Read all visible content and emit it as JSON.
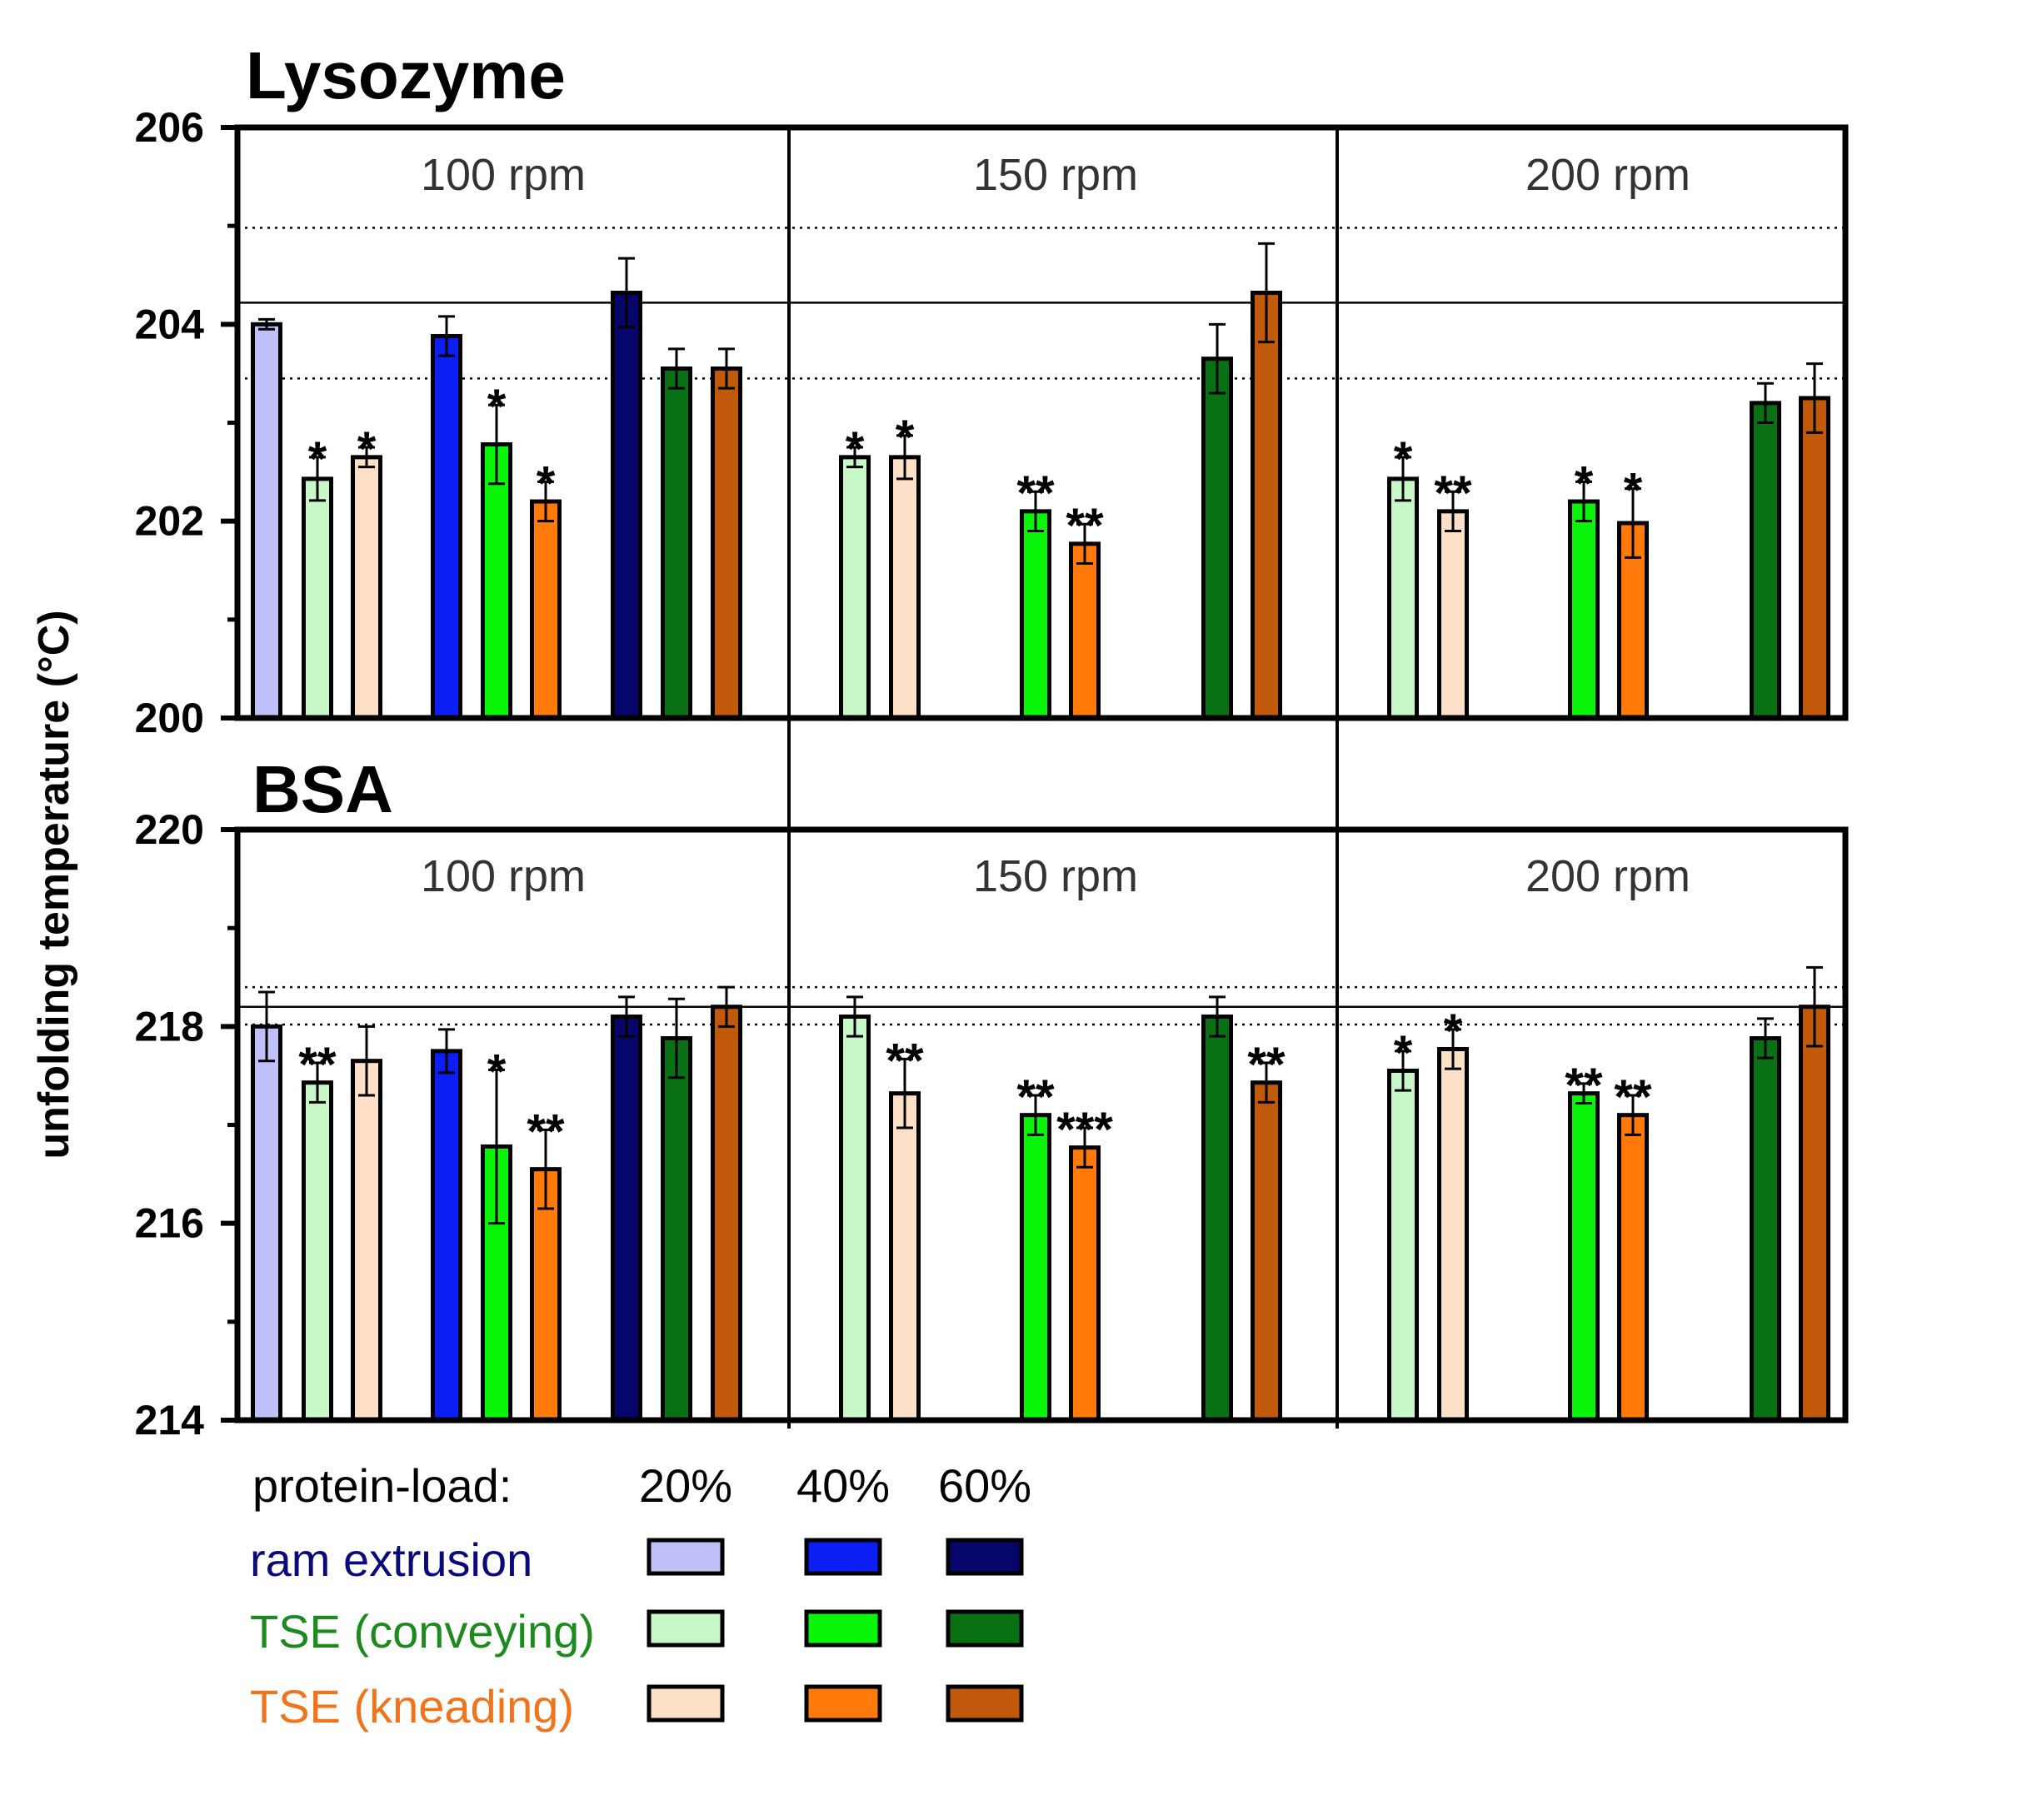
{
  "ylabel": "unfolding temperature (°C)",
  "legend": {
    "title": "protein-load:",
    "loads": [
      "20%",
      "40%",
      "60%"
    ],
    "rows": [
      {
        "label": "ram extrusion",
        "color": "#0a0a7a",
        "swatches": [
          "#c0c0f8",
          "#0a1ef5",
          "#06066a"
        ]
      },
      {
        "label": "TSE (conveying)",
        "color": "#1c8a1c",
        "swatches": [
          "#c8f8c8",
          "#0af50a",
          "#0a7014"
        ]
      },
      {
        "label": "TSE (kneading)",
        "color": "#f0741e",
        "swatches": [
          "#fde0c8",
          "#ff7a0a",
          "#c05a0a"
        ]
      }
    ]
  },
  "chart_data": [
    {
      "type": "bar",
      "title": "Lysozyme",
      "ylabel": "unfolding temperature (°C)",
      "ylim": [
        200,
        206
      ],
      "yticks": [
        "200",
        "202",
        "204",
        "206"
      ],
      "reference_line": 204.22,
      "reference_band": [
        203.45,
        204.98
      ],
      "panels": [
        "100 rpm",
        "150 rpm",
        "200 rpm"
      ],
      "bars": [
        {
          "panel": "100 rpm",
          "process": "ram extrusion",
          "load": "20%",
          "value": 204.0,
          "err": 0.05,
          "sig": ""
        },
        {
          "panel": "100 rpm",
          "process": "TSE (conveying)",
          "load": "20%",
          "value": 202.43,
          "err": 0.22,
          "sig": "*"
        },
        {
          "panel": "100 rpm",
          "process": "TSE (kneading)",
          "load": "20%",
          "value": 202.65,
          "err": 0.1,
          "sig": "*"
        },
        {
          "panel": "100 rpm",
          "process": "ram extrusion",
          "load": "40%",
          "value": 203.88,
          "err": 0.2,
          "sig": ""
        },
        {
          "panel": "100 rpm",
          "process": "TSE (conveying)",
          "load": "40%",
          "value": 202.78,
          "err": 0.4,
          "sig": "*"
        },
        {
          "panel": "100 rpm",
          "process": "TSE (kneading)",
          "load": "40%",
          "value": 202.2,
          "err": 0.2,
          "sig": "*"
        },
        {
          "panel": "100 rpm",
          "process": "ram extrusion",
          "load": "60%",
          "value": 204.32,
          "err": 0.35,
          "sig": ""
        },
        {
          "panel": "100 rpm",
          "process": "TSE (conveying)",
          "load": "60%",
          "value": 203.55,
          "err": 0.2,
          "sig": ""
        },
        {
          "panel": "100 rpm",
          "process": "TSE (kneading)",
          "load": "60%",
          "value": 203.55,
          "err": 0.2,
          "sig": ""
        },
        {
          "panel": "150 rpm",
          "process": "TSE (conveying)",
          "load": "20%",
          "value": 202.65,
          "err": 0.1,
          "sig": "*"
        },
        {
          "panel": "150 rpm",
          "process": "TSE (kneading)",
          "load": "20%",
          "value": 202.65,
          "err": 0.22,
          "sig": "*"
        },
        {
          "panel": "150 rpm",
          "process": "TSE (conveying)",
          "load": "40%",
          "value": 202.1,
          "err": 0.2,
          "sig": "**"
        },
        {
          "panel": "150 rpm",
          "process": "TSE (kneading)",
          "load": "40%",
          "value": 201.77,
          "err": 0.2,
          "sig": "**"
        },
        {
          "panel": "150 rpm",
          "process": "TSE (conveying)",
          "load": "60%",
          "value": 203.65,
          "err": 0.35,
          "sig": ""
        },
        {
          "panel": "150 rpm",
          "process": "TSE (kneading)",
          "load": "60%",
          "value": 204.32,
          "err": 0.5,
          "sig": ""
        },
        {
          "panel": "200 rpm",
          "process": "TSE (conveying)",
          "load": "20%",
          "value": 202.43,
          "err": 0.22,
          "sig": "*"
        },
        {
          "panel": "200 rpm",
          "process": "TSE (kneading)",
          "load": "20%",
          "value": 202.1,
          "err": 0.2,
          "sig": "**"
        },
        {
          "panel": "200 rpm",
          "process": "TSE (conveying)",
          "load": "40%",
          "value": 202.2,
          "err": 0.2,
          "sig": "*"
        },
        {
          "panel": "200 rpm",
          "process": "TSE (kneading)",
          "load": "40%",
          "value": 201.98,
          "err": 0.35,
          "sig": "*"
        },
        {
          "panel": "200 rpm",
          "process": "TSE (conveying)",
          "load": "60%",
          "value": 203.2,
          "err": 0.2,
          "sig": ""
        },
        {
          "panel": "200 rpm",
          "process": "TSE (kneading)",
          "load": "60%",
          "value": 203.25,
          "err": 0.35,
          "sig": ""
        }
      ]
    },
    {
      "type": "bar",
      "title": "BSA",
      "ylabel": "unfolding temperature (°C)",
      "ylim": [
        214,
        220
      ],
      "yticks": [
        "214",
        "216",
        "218",
        "220"
      ],
      "reference_line": 218.2,
      "reference_band": [
        218.02,
        218.4
      ],
      "panels": [
        "100 rpm",
        "150 rpm",
        "200 rpm"
      ],
      "bars": [
        {
          "panel": "100 rpm",
          "process": "ram extrusion",
          "load": "20%",
          "value": 218.0,
          "err": 0.35,
          "sig": ""
        },
        {
          "panel": "100 rpm",
          "process": "TSE (conveying)",
          "load": "20%",
          "value": 217.43,
          "err": 0.2,
          "sig": "**"
        },
        {
          "panel": "100 rpm",
          "process": "TSE (kneading)",
          "load": "20%",
          "value": 217.65,
          "err": 0.35,
          "sig": ""
        },
        {
          "panel": "100 rpm",
          "process": "ram extrusion",
          "load": "40%",
          "value": 217.75,
          "err": 0.22,
          "sig": ""
        },
        {
          "panel": "100 rpm",
          "process": "TSE (conveying)",
          "load": "40%",
          "value": 216.78,
          "err": 0.78,
          "sig": "*"
        },
        {
          "panel": "100 rpm",
          "process": "TSE (kneading)",
          "load": "40%",
          "value": 216.55,
          "err": 0.4,
          "sig": "**"
        },
        {
          "panel": "100 rpm",
          "process": "ram extrusion",
          "load": "60%",
          "value": 218.1,
          "err": 0.2,
          "sig": ""
        },
        {
          "panel": "100 rpm",
          "process": "TSE (conveying)",
          "load": "60%",
          "value": 217.88,
          "err": 0.4,
          "sig": ""
        },
        {
          "panel": "100 rpm",
          "process": "TSE (kneading)",
          "load": "60%",
          "value": 218.2,
          "err": 0.2,
          "sig": ""
        },
        {
          "panel": "150 rpm",
          "process": "TSE (conveying)",
          "load": "20%",
          "value": 218.1,
          "err": 0.2,
          "sig": ""
        },
        {
          "panel": "150 rpm",
          "process": "TSE (kneading)",
          "load": "20%",
          "value": 217.32,
          "err": 0.35,
          "sig": "**"
        },
        {
          "panel": "150 rpm",
          "process": "TSE (conveying)",
          "load": "40%",
          "value": 217.1,
          "err": 0.2,
          "sig": "**"
        },
        {
          "panel": "150 rpm",
          "process": "TSE (kneading)",
          "load": "40%",
          "value": 216.77,
          "err": 0.2,
          "sig": "***"
        },
        {
          "panel": "150 rpm",
          "process": "TSE (conveying)",
          "load": "60%",
          "value": 218.1,
          "err": 0.2,
          "sig": ""
        },
        {
          "panel": "150 rpm",
          "process": "TSE (kneading)",
          "load": "60%",
          "value": 217.43,
          "err": 0.2,
          "sig": "**"
        },
        {
          "panel": "200 rpm",
          "process": "TSE (conveying)",
          "load": "20%",
          "value": 217.55,
          "err": 0.2,
          "sig": "*"
        },
        {
          "panel": "200 rpm",
          "process": "TSE (kneading)",
          "load": "20%",
          "value": 217.77,
          "err": 0.2,
          "sig": "*"
        },
        {
          "panel": "200 rpm",
          "process": "TSE (conveying)",
          "load": "40%",
          "value": 217.32,
          "err": 0.1,
          "sig": "**"
        },
        {
          "panel": "200 rpm",
          "process": "TSE (kneading)",
          "load": "40%",
          "value": 217.1,
          "err": 0.2,
          "sig": "**"
        },
        {
          "panel": "200 rpm",
          "process": "TSE (conveying)",
          "load": "60%",
          "value": 217.88,
          "err": 0.2,
          "sig": ""
        },
        {
          "panel": "200 rpm",
          "process": "TSE (kneading)",
          "load": "60%",
          "value": 218.2,
          "err": 0.4,
          "sig": ""
        }
      ]
    }
  ]
}
